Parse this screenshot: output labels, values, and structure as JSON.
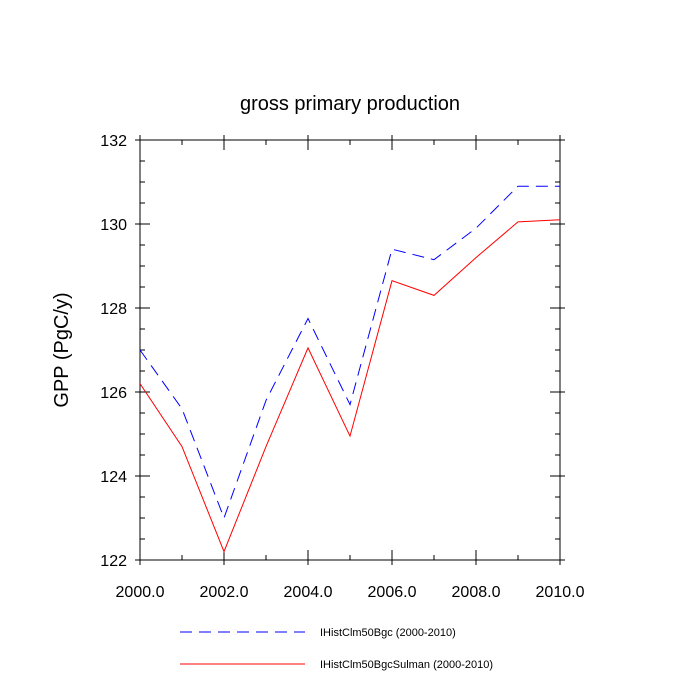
{
  "chart_data": {
    "type": "line",
    "title": "gross primary production",
    "xlabel": "",
    "ylabel": "GPP  (PgC/y)",
    "xlim": [
      2000,
      2010
    ],
    "ylim": [
      122,
      132
    ],
    "x_ticks": [
      2000,
      2002,
      2004,
      2006,
      2008,
      2010
    ],
    "x_tick_labels": [
      "2000.0",
      "2002.0",
      "2004.0",
      "2006.0",
      "2008.0",
      "2010.0"
    ],
    "y_ticks": [
      122,
      124,
      126,
      128,
      130,
      132
    ],
    "y_tick_labels": [
      "122",
      "124",
      "126",
      "128",
      "130",
      "132"
    ],
    "grid": false,
    "legend_position": "bottom",
    "x": [
      2000,
      2001,
      2002,
      2003,
      2004,
      2005,
      2006,
      2007,
      2008,
      2009,
      2010
    ],
    "series": [
      {
        "name": "IHistClm50Bgc (2000-2010)",
        "color": "#0000ff",
        "dash": "dashed",
        "values": [
          127.0,
          125.6,
          123.0,
          125.8,
          127.75,
          125.7,
          129.4,
          129.15,
          129.9,
          130.9,
          130.9
        ]
      },
      {
        "name": "IHistClm50BgcSulman (2000-2010)",
        "color": "#ff0000",
        "dash": "solid",
        "values": [
          126.2,
          124.7,
          122.2,
          124.7,
          127.05,
          124.95,
          128.65,
          128.3,
          129.2,
          130.05,
          130.1
        ]
      }
    ]
  }
}
